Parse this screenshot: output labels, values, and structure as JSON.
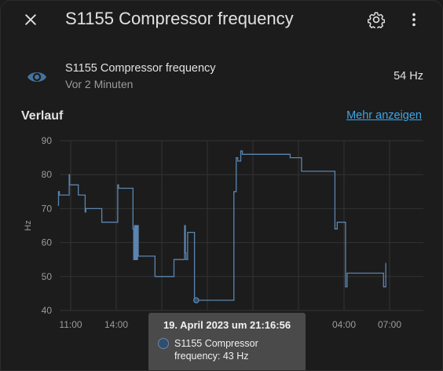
{
  "dialog": {
    "title": "S1155 Compressor frequency",
    "close_icon": "close-icon",
    "settings_icon": "gear-icon",
    "menu_icon": "more-vert-icon"
  },
  "entity": {
    "icon": "eye-icon",
    "name": "S1155 Compressor frequency",
    "last_changed": "Vor 2 Minuten",
    "state": "54 Hz"
  },
  "history": {
    "title": "Verlauf",
    "more_link": "Mehr anzeigen"
  },
  "chart_data": {
    "type": "line",
    "ylabel": "Hz",
    "ylim": [
      40,
      90
    ],
    "y_ticks": [
      "40",
      "50",
      "60",
      "70",
      "80",
      "90"
    ],
    "x_ticks": [
      "11:00",
      "14:00",
      "",
      "",
      "",
      "",
      "04:00",
      "07:00"
    ],
    "grid": true,
    "color": "#5b85b0",
    "series": [
      {
        "values": [
          [
            10.15,
            71
          ],
          [
            10.2,
            75
          ],
          [
            10.25,
            74
          ],
          [
            10.85,
            74
          ],
          [
            10.9,
            80
          ],
          [
            10.93,
            77
          ],
          [
            11.4,
            77
          ],
          [
            11.5,
            74
          ],
          [
            11.85,
            74
          ],
          [
            11.95,
            69
          ],
          [
            12.0,
            70
          ],
          [
            13.0,
            70
          ],
          [
            13.05,
            66
          ],
          [
            13.95,
            66
          ],
          [
            14.1,
            77
          ],
          [
            14.15,
            76
          ],
          [
            14.85,
            76
          ],
          [
            15.1,
            64
          ],
          [
            15.15,
            55
          ],
          [
            15.2,
            65
          ],
          [
            15.25,
            55
          ],
          [
            15.3,
            65
          ],
          [
            15.35,
            55
          ],
          [
            15.4,
            65
          ],
          [
            15.45,
            56
          ],
          [
            16.5,
            56
          ],
          [
            16.55,
            50
          ],
          [
            17.7,
            50
          ],
          [
            17.8,
            55
          ],
          [
            18.4,
            55
          ],
          [
            18.5,
            65
          ],
          [
            18.55,
            57
          ],
          [
            18.6,
            55
          ],
          [
            18.7,
            63
          ],
          [
            19.1,
            63
          ],
          [
            19.15,
            43
          ],
          [
            19.2,
            43
          ],
          [
            21.6,
            43
          ],
          [
            21.75,
            75
          ],
          [
            21.9,
            85
          ],
          [
            22.0,
            84
          ],
          [
            22.2,
            87
          ],
          [
            22.3,
            86
          ],
          [
            25.4,
            86
          ],
          [
            25.45,
            85
          ],
          [
            26.15,
            85
          ],
          [
            26.2,
            81
          ],
          [
            28.25,
            81
          ],
          [
            28.4,
            64
          ],
          [
            28.55,
            66
          ],
          [
            28.9,
            66
          ],
          [
            29.1,
            47
          ],
          [
            29.2,
            51
          ],
          [
            31.55,
            51
          ],
          [
            31.6,
            47
          ],
          [
            31.75,
            54
          ]
        ]
      }
    ],
    "highlight": {
      "x": 19.27,
      "y": 43
    }
  },
  "tooltip": {
    "title": "19. April 2023 um 21:16:56",
    "line1": "S1155 Compressor",
    "line2": "frequency: 43 Hz"
  }
}
